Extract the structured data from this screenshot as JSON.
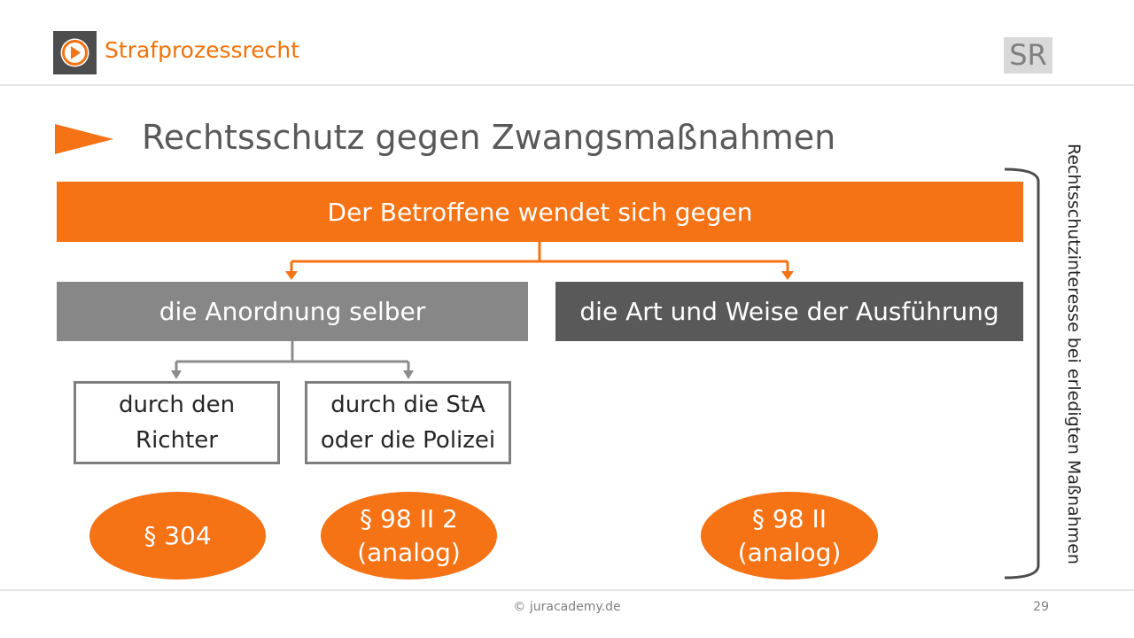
{
  "header": {
    "logo_icon": "play-circle-icon",
    "course_title": "Strafprozessrecht",
    "badge": "SR"
  },
  "slide": {
    "title": "Rechtsschutz gegen Zwangsmaßnahmen",
    "top_box": "Der Betroffene wendet sich gegen",
    "left_branch": "die Anordnung selber",
    "right_branch": "die Art und Weise der Ausführung",
    "sub_boxes": [
      {
        "line1": "durch den",
        "line2": "Richter"
      },
      {
        "line1": "durch die StA",
        "line2": "oder die Polizei"
      }
    ],
    "provisions": [
      {
        "line1": "§ 304",
        "line2": ""
      },
      {
        "line1": "§ 98 II 2",
        "line2": "(analog)"
      },
      {
        "line1": "§ 98 II",
        "line2": "(analog)"
      }
    ],
    "side_label": "Rechtsschutzinteresse bei erledigten Maßnahmen"
  },
  "footer": {
    "copyright": "© juracademy.de",
    "page_number": "29"
  },
  "colors": {
    "accent": "#f57215",
    "grey_light": "#878787",
    "grey_dark": "#595959",
    "text": "#262626"
  }
}
